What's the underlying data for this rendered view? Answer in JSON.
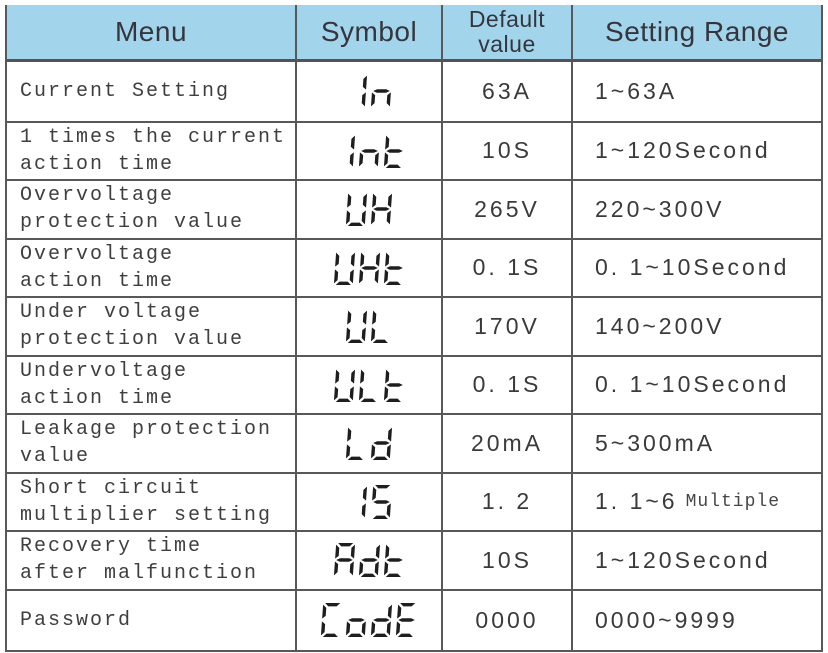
{
  "header": {
    "columns": [
      "Menu",
      "Symbol",
      "Default value",
      "Setting Range"
    ]
  },
  "rows": [
    {
      "menu": "Current Setting",
      "symbol": "In",
      "default": "63A",
      "range": "1~63A",
      "range_note": ""
    },
    {
      "menu": "1 times the current\naction time",
      "symbol": "Int",
      "default": "10S",
      "range": "1~120Second",
      "range_note": ""
    },
    {
      "menu": "Overvoltage\nprotection value",
      "symbol": "UH",
      "default": "265V",
      "range": "220~300V",
      "range_note": ""
    },
    {
      "menu": "Overvoltage\naction time",
      "symbol": "UHt",
      "default": "0. 1S",
      "range": "0. 1~10Second",
      "range_note": ""
    },
    {
      "menu": "Under voltage\nprotection value",
      "symbol": "UL",
      "default": "170V",
      "range": "140~200V",
      "range_note": ""
    },
    {
      "menu": "Undervoltage\naction time",
      "symbol": "ULt",
      "default": "0. 1S",
      "range": "0. 1~10Second",
      "range_note": ""
    },
    {
      "menu": "Leakage protection\nvalue",
      "symbol": "Ld",
      "default": "20mA",
      "range": "5~300mA",
      "range_note": ""
    },
    {
      "menu": "Short circuit\nmultiplier setting",
      "symbol": "IS",
      "default": "1. 2",
      "range": "1. 1~6",
      "range_note": "Multiple"
    },
    {
      "menu": "Recovery time\nafter malfunction",
      "symbol": "Adt",
      "default": "10S",
      "range": "1~120Second",
      "range_note": ""
    },
    {
      "menu": "Password",
      "symbol": "CodE",
      "default": "0000",
      "range": "0000~9999",
      "range_note": ""
    }
  ],
  "colors": {
    "header_bg": "#a2d5ec",
    "border": "#58585b",
    "text": "#3a3a3a",
    "segment_digits": "#1e1e1e"
  }
}
